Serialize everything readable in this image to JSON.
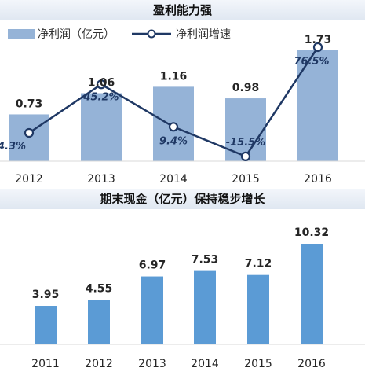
{
  "chart_data": [
    {
      "type": "bar+line",
      "title": "盈利能力强",
      "legend_position": "top",
      "categories": [
        "2012",
        "2013",
        "2014",
        "2015",
        "2016"
      ],
      "series": [
        {
          "name": "净利润（亿元）",
          "type": "bar",
          "values": [
            0.73,
            1.06,
            1.16,
            0.98,
            1.73
          ],
          "labels": [
            "0.73",
            "1.06",
            "1.16",
            "0.98",
            "1.73"
          ],
          "color": "#95b3d7"
        },
        {
          "name": "净利润增速",
          "type": "line",
          "values": [
            4.3,
            45.2,
            9.4,
            -15.5,
            76.5
          ],
          "labels": [
            "4.3%",
            "45.2%",
            "9.4%",
            "-15.5%",
            "76.5%"
          ],
          "color": "#1f3864"
        }
      ],
      "bar_ylim": [
        0,
        1.9
      ],
      "line_ylim": [
        -30,
        90
      ]
    },
    {
      "type": "bar",
      "title": "期末现金（亿元）保持稳步增长",
      "categories": [
        "2011",
        "2012",
        "2013",
        "2014",
        "2015",
        "2016"
      ],
      "values": [
        3.95,
        4.55,
        6.97,
        7.53,
        7.12,
        10.32
      ],
      "labels": [
        "3.95",
        "4.55",
        "6.97",
        "7.53",
        "7.12",
        "10.32"
      ],
      "color": "#5b9bd5",
      "ylim": [
        0,
        11
      ]
    }
  ]
}
